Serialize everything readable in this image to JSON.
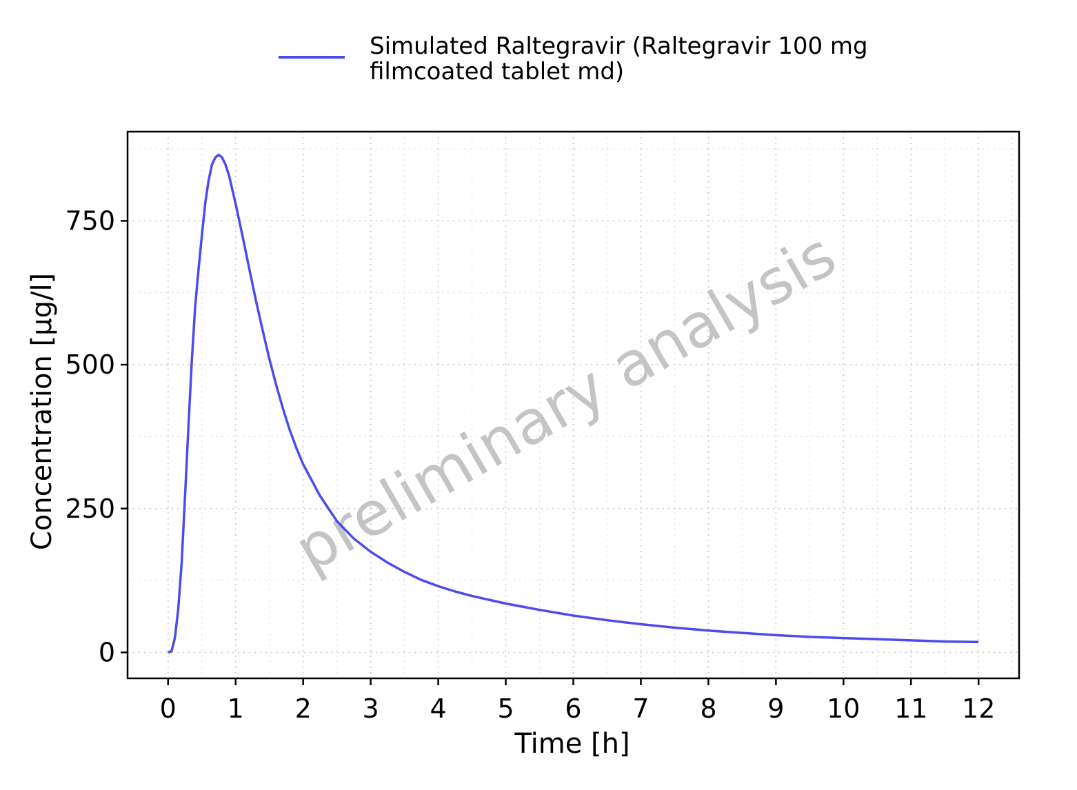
{
  "chart_data": {
    "type": "line",
    "xlabel": "Time [h]",
    "ylabel": "Concentration [µg/l]",
    "xlim": [
      -0.6,
      12.6
    ],
    "ylim": [
      -45,
      905
    ],
    "x_ticks": [
      0,
      1,
      2,
      3,
      4,
      5,
      6,
      7,
      8,
      9,
      10,
      11,
      12
    ],
    "x_tick_labels": [
      "0",
      "1",
      "2",
      "3",
      "4",
      "5",
      "6",
      "7",
      "8",
      "9",
      "10",
      "11",
      "12"
    ],
    "y_ticks": [
      0,
      250,
      500,
      750
    ],
    "y_tick_labels": [
      "0",
      "250",
      "500",
      "750"
    ],
    "x_minor_ticks": [
      0.5,
      1.5,
      2.5,
      3.5,
      4.5,
      5.5,
      6.5,
      7.5,
      8.5,
      9.5,
      10.5,
      11.5,
      12.5
    ],
    "y_minor_ticks": [
      125,
      375,
      625,
      875
    ],
    "grid": true,
    "legend_position": "top",
    "watermark": "preliminary analysis",
    "series": [
      {
        "name": "Simulated Raltegravir (Raltegravir 100 mg filmcoated tablet md)",
        "color": "#4b4bf0",
        "x": [
          0.0,
          0.05,
          0.1,
          0.15,
          0.2,
          0.25,
          0.3,
          0.35,
          0.4,
          0.45,
          0.5,
          0.55,
          0.6,
          0.65,
          0.7,
          0.75,
          0.8,
          0.85,
          0.9,
          1.0,
          1.1,
          1.2,
          1.3,
          1.4,
          1.5,
          1.6,
          1.7,
          1.8,
          1.9,
          2.0,
          2.25,
          2.5,
          2.75,
          3.0,
          3.25,
          3.5,
          3.75,
          4.0,
          4.25,
          4.5,
          5.0,
          5.5,
          6.0,
          6.5,
          7.0,
          7.5,
          8.0,
          8.5,
          9.0,
          9.5,
          10.0,
          10.5,
          11.0,
          11.5,
          12.0
        ],
        "y": [
          0,
          2,
          25,
          75,
          155,
          270,
          390,
          505,
          600,
          665,
          725,
          780,
          820,
          848,
          860,
          865,
          860,
          848,
          830,
          780,
          725,
          668,
          612,
          560,
          510,
          465,
          424,
          387,
          355,
          327,
          272,
          228,
          198,
          175,
          156,
          140,
          126,
          115,
          106,
          98,
          85,
          74,
          64,
          56,
          49,
          43,
          38,
          34,
          30,
          27,
          25,
          23,
          21,
          19,
          18
        ]
      }
    ]
  }
}
